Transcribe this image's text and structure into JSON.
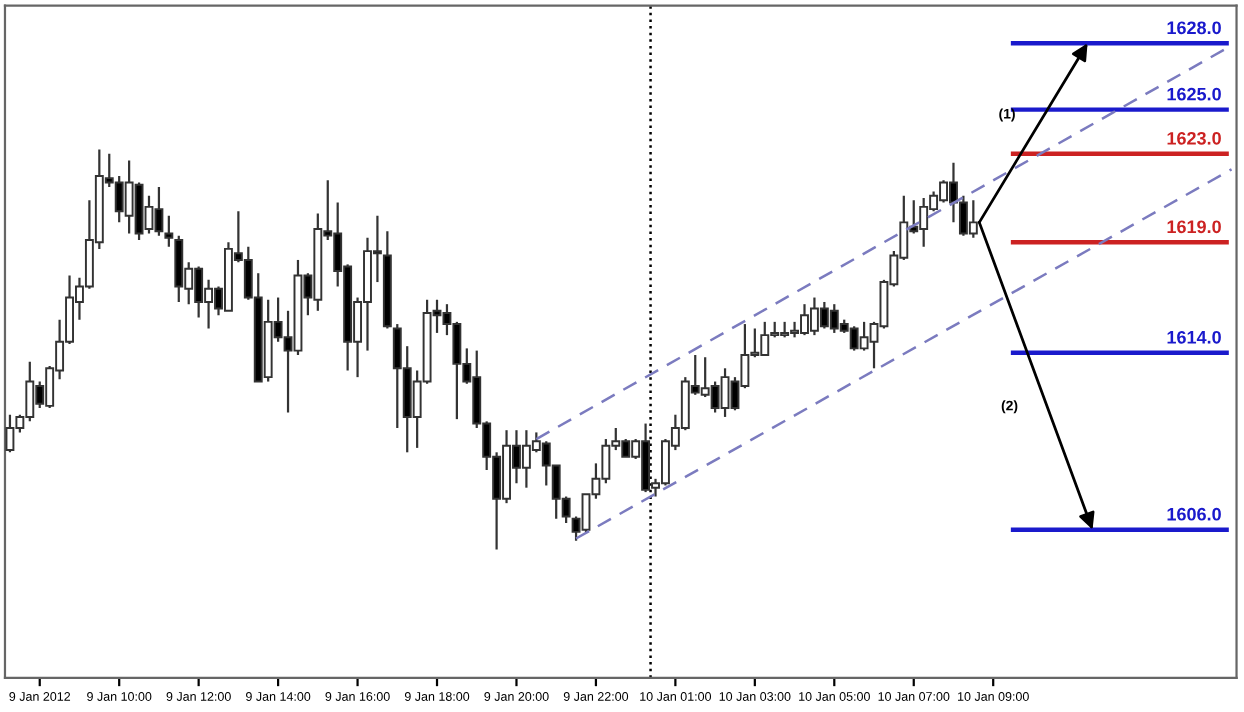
{
  "chart_data": {
    "type": "candlestick",
    "categories": [
      null,
      null,
      null,
      "9 Jan 2012",
      null,
      null,
      null,
      null,
      null,
      null,
      null,
      "9 Jan 10:00",
      null,
      null,
      null,
      null,
      null,
      null,
      null,
      "9 Jan 12:00",
      null,
      null,
      null,
      null,
      null,
      null,
      null,
      "9 Jan 14:00",
      null,
      null,
      null,
      null,
      null,
      null,
      null,
      "9 Jan 16:00",
      null,
      null,
      null,
      null,
      null,
      null,
      null,
      "9 Jan 18:00",
      null,
      null,
      null,
      null,
      null,
      null,
      null,
      "9 Jan 20:00",
      null,
      null,
      null,
      null,
      null,
      null,
      null,
      "9 Jan 22:00",
      null,
      null,
      null,
      null,
      null,
      null,
      null,
      "10 Jan 01:00",
      null,
      null,
      null,
      null,
      null,
      null,
      null,
      "10 Jan 03:00",
      null,
      null,
      null,
      null,
      null,
      null,
      null,
      "10 Jan 05:00",
      null,
      null,
      null,
      null,
      null,
      null,
      null,
      "10 Jan 07:00",
      null,
      null,
      null,
      null,
      null,
      null,
      null,
      "10 Jan 09:00",
      null,
      null,
      null,
      null,
      null,
      null,
      null,
      null,
      null,
      null,
      null,
      null,
      null,
      null,
      null,
      null,
      null,
      null,
      null,
      null,
      null,
      null,
      null,
      null
    ],
    "ohlc": [
      [
        1609.6,
        1611.2,
        1609.5,
        1610.6
      ],
      [
        1610.6,
        1611.2,
        1610.4,
        1611.1
      ],
      [
        1611.1,
        1613.6,
        1610.9,
        1612.7
      ],
      [
        1612.5,
        1612.7,
        1611.5,
        1611.7
      ],
      [
        1611.6,
        1613.4,
        1611.5,
        1613.3
      ],
      [
        1613.2,
        1615.5,
        1612.8,
        1614.5
      ],
      [
        1614.5,
        1617.5,
        1614.4,
        1616.5
      ],
      [
        1616.3,
        1617.4,
        1615.5,
        1617.0
      ],
      [
        1617.0,
        1620.9,
        1616.9,
        1619.1
      ],
      [
        1619.0,
        1623.2,
        1618.7,
        1622.0
      ],
      [
        1621.9,
        1623.0,
        1621.5,
        1621.7
      ],
      [
        1621.7,
        1622.0,
        1619.9,
        1620.4
      ],
      [
        1620.2,
        1622.7,
        1619.4,
        1621.7
      ],
      [
        1621.6,
        1621.7,
        1619.1,
        1619.4
      ],
      [
        1619.6,
        1621.1,
        1619.4,
        1620.6
      ],
      [
        1620.5,
        1621.5,
        1619.3,
        1619.5
      ],
      [
        1619.4,
        1620.2,
        1618.8,
        1619.2
      ],
      [
        1619.1,
        1619.3,
        1616.3,
        1617.0
      ],
      [
        1616.9,
        1618.1,
        1616.2,
        1617.8
      ],
      [
        1617.8,
        1617.9,
        1615.6,
        1616.3
      ],
      [
        1616.3,
        1617.3,
        1615.1,
        1616.9
      ],
      [
        1616.9,
        1617.0,
        1615.7,
        1616.0
      ],
      [
        1615.9,
        1619.0,
        1615.9,
        1618.7
      ],
      [
        1618.5,
        1620.4,
        1618.1,
        1618.2
      ],
      [
        1618.2,
        1618.8,
        1616.4,
        1616.5
      ],
      [
        1616.5,
        1617.6,
        1612.7,
        1612.7
      ],
      [
        1612.9,
        1616.4,
        1612.7,
        1615.4
      ],
      [
        1615.4,
        1616.5,
        1614.5,
        1614.7
      ],
      [
        1614.7,
        1615.9,
        1611.3,
        1614.1
      ],
      [
        1614.1,
        1618.2,
        1613.9,
        1617.5
      ],
      [
        1617.5,
        1617.6,
        1615.7,
        1616.5
      ],
      [
        1616.4,
        1620.3,
        1615.9,
        1619.6
      ],
      [
        1619.5,
        1621.8,
        1619.1,
        1619.3
      ],
      [
        1619.4,
        1620.8,
        1617.0,
        1617.7
      ],
      [
        1617.9,
        1618.0,
        1613.2,
        1614.5
      ],
      [
        1614.5,
        1616.5,
        1612.9,
        1616.3
      ],
      [
        1616.3,
        1619.2,
        1614.1,
        1618.6
      ],
      [
        1618.6,
        1620.2,
        1617.2,
        1618.5
      ],
      [
        1618.4,
        1619.5,
        1615.1,
        1615.2
      ],
      [
        1615.1,
        1615.3,
        1610.6,
        1613.3
      ],
      [
        1613.3,
        1614.3,
        1609.5,
        1611.1
      ],
      [
        1611.1,
        1613.2,
        1609.7,
        1612.7
      ],
      [
        1612.7,
        1616.4,
        1612.6,
        1615.8
      ],
      [
        1615.9,
        1616.4,
        1614.9,
        1615.7
      ],
      [
        1615.8,
        1616.2,
        1614.8,
        1615.3
      ],
      [
        1615.3,
        1615.4,
        1611.0,
        1613.5
      ],
      [
        1613.5,
        1614.2,
        1612.6,
        1612.7
      ],
      [
        1612.9,
        1614.1,
        1610.6,
        1610.8
      ],
      [
        1610.8,
        1610.9,
        1608.7,
        1609.3
      ],
      [
        1609.3,
        1609.5,
        1605.1,
        1607.4
      ],
      [
        1607.4,
        1610.5,
        1607.2,
        1609.8
      ],
      [
        1609.8,
        1610.5,
        1608.1,
        1608.8
      ],
      [
        1608.8,
        1610.5,
        1607.9,
        1609.8
      ],
      [
        1609.6,
        1610.4,
        1609.5,
        1610.0
      ],
      [
        1609.9,
        1610.0,
        1608.0,
        1608.9
      ],
      [
        1608.9,
        1608.9,
        1606.5,
        1607.4
      ],
      [
        1607.4,
        1607.5,
        1606.3,
        1606.6
      ],
      [
        1606.5,
        1606.6,
        1605.5,
        1605.9
      ],
      [
        1606.0,
        1607.6,
        1605.9,
        1607.6
      ],
      [
        1607.6,
        1609.0,
        1607.4,
        1608.3
      ],
      [
        1608.3,
        1610.1,
        1608.1,
        1609.8
      ],
      [
        1609.8,
        1610.6,
        1609.6,
        1610.0
      ],
      [
        1610.0,
        1610.1,
        1609.3,
        1609.3
      ],
      [
        1609.3,
        1610.1,
        1609.2,
        1610.0
      ],
      [
        1610.0,
        1610.8,
        1607.7,
        1607.8
      ],
      [
        1607.9,
        1608.3,
        1607.5,
        1608.1
      ],
      [
        1608.1,
        1610.1,
        1608.0,
        1610.0
      ],
      [
        1609.8,
        1611.2,
        1609.6,
        1610.6
      ],
      [
        1610.6,
        1612.9,
        1610.5,
        1612.7
      ],
      [
        1612.5,
        1613.9,
        1612.1,
        1612.2
      ],
      [
        1612.1,
        1613.8,
        1612.0,
        1612.4
      ],
      [
        1612.5,
        1612.7,
        1611.3,
        1611.5
      ],
      [
        1611.5,
        1613.3,
        1611.1,
        1612.9
      ],
      [
        1612.7,
        1612.9,
        1611.4,
        1611.5
      ],
      [
        1612.5,
        1615.3,
        1612.4,
        1613.9
      ],
      [
        1613.9,
        1615.1,
        1613.8,
        1614.0
      ],
      [
        1613.9,
        1615.4,
        1613.9,
        1614.8
      ],
      [
        1614.8,
        1615.4,
        1614.7,
        1614.9
      ],
      [
        1614.8,
        1615.4,
        1614.7,
        1614.9
      ],
      [
        1614.9,
        1615.4,
        1614.7,
        1615.0
      ],
      [
        1614.9,
        1616.2,
        1614.8,
        1615.7
      ],
      [
        1615.0,
        1616.5,
        1614.8,
        1616.0
      ],
      [
        1616.0,
        1616.3,
        1615.1,
        1615.2
      ],
      [
        1615.9,
        1616.2,
        1614.9,
        1615.1
      ],
      [
        1615.3,
        1615.5,
        1614.9,
        1615.0
      ],
      [
        1615.1,
        1615.2,
        1614.1,
        1614.2
      ],
      [
        1614.2,
        1615.4,
        1614.1,
        1614.7
      ],
      [
        1614.5,
        1615.4,
        1613.3,
        1615.3
      ],
      [
        1615.2,
        1617.3,
        1615.1,
        1617.2
      ],
      [
        1617.1,
        1618.6,
        1617.0,
        1618.4
      ],
      [
        1618.3,
        1621.1,
        1618.2,
        1619.9
      ],
      [
        1619.7,
        1620.9,
        1619.4,
        1619.5
      ],
      [
        1619.6,
        1621.0,
        1618.8,
        1620.6
      ],
      [
        1620.5,
        1621.3,
        1620.4,
        1621.1
      ],
      [
        1620.9,
        1621.8,
        1620.8,
        1621.7
      ],
      [
        1621.7,
        1622.6,
        1619.9,
        1620.8
      ],
      [
        1620.8,
        1621.1,
        1619.3,
        1619.4
      ],
      [
        1619.4,
        1620.9,
        1619.2,
        1619.9
      ],
      null,
      null,
      null,
      null,
      null,
      null,
      null,
      null,
      null,
      null,
      null,
      null,
      null,
      null,
      null,
      null,
      null,
      null,
      null,
      null,
      null,
      null,
      null,
      null,
      null,
      null
    ],
    "series": [
      {
        "type": "line",
        "color": "#7b7bbf",
        "line_style": "dashed",
        "values": [
          null,
          null,
          null,
          null,
          null,
          null,
          null,
          null,
          null,
          null,
          null,
          null,
          null,
          null,
          null,
          null,
          null,
          null,
          null,
          null,
          null,
          null,
          null,
          null,
          null,
          null,
          null,
          null,
          null,
          null,
          null,
          null,
          null,
          null,
          null,
          null,
          null,
          null,
          null,
          null,
          null,
          null,
          null,
          null,
          null,
          null,
          null,
          null,
          null,
          null,
          null,
          null,
          null,
          1610.1,
          null,
          null,
          null,
          null,
          null,
          null,
          null,
          null,
          null,
          null,
          null,
          null,
          null,
          null,
          null,
          null,
          null,
          null,
          null,
          null,
          null,
          null,
          null,
          null,
          null,
          null,
          null,
          null,
          null,
          null,
          null,
          null,
          null,
          null,
          null,
          null,
          null,
          null,
          null,
          null,
          null,
          null,
          null,
          null,
          null,
          null,
          null,
          null,
          null,
          null,
          null,
          null,
          null,
          null,
          null,
          null,
          null,
          null,
          null,
          null,
          null,
          null,
          null,
          null,
          null,
          null,
          null,
          null,
          null,
          1627.9
        ]
      },
      {
        "type": "line",
        "color": "#7b7bbf",
        "line_style": "dashed",
        "values": [
          null,
          null,
          null,
          null,
          null,
          null,
          null,
          null,
          null,
          null,
          null,
          null,
          null,
          null,
          null,
          null,
          null,
          null,
          null,
          null,
          null,
          null,
          null,
          null,
          null,
          null,
          null,
          null,
          null,
          null,
          null,
          null,
          null,
          null,
          null,
          null,
          null,
          null,
          null,
          null,
          null,
          null,
          null,
          null,
          null,
          null,
          null,
          null,
          null,
          null,
          null,
          null,
          null,
          null,
          null,
          null,
          null,
          1605.6,
          null,
          null,
          null,
          null,
          null,
          null,
          null,
          null,
          null,
          null,
          null,
          null,
          null,
          null,
          null,
          null,
          null,
          null,
          null,
          null,
          null,
          null,
          null,
          null,
          null,
          null,
          null,
          null,
          null,
          null,
          null,
          null,
          null,
          null,
          null,
          null,
          null,
          null,
          null,
          null,
          null,
          null,
          null,
          null,
          null,
          null,
          null,
          null,
          null,
          null,
          null,
          null,
          null,
          null,
          null,
          null,
          null,
          null,
          null,
          null,
          null,
          null,
          null,
          null,
          null,
          1622.3
        ]
      }
    ],
    "ref_lines": [
      {
        "axis": "y",
        "value": 1628,
        "label": "1628.0",
        "color": "#1a1acc"
      },
      {
        "axis": "y",
        "value": 1625,
        "label": "1625.0",
        "color": "#1a1acc"
      },
      {
        "axis": "y",
        "value": 1623,
        "label": "1623.0",
        "color": "#cc2222"
      },
      {
        "axis": "y",
        "value": 1619,
        "label": "1619.0",
        "color": "#cc2222"
      },
      {
        "axis": "y",
        "value": 1614,
        "label": "1614.0",
        "color": "#1a1acc"
      },
      {
        "axis": "y",
        "value": 1606,
        "label": "1606.0",
        "color": "#1a1acc"
      }
    ],
    "annotations": [
      "(1)",
      "(2)"
    ],
    "ylim": [
      1599.3,
      1629.7
    ],
    "tick_labels": "x",
    "grid": false,
    "legend": false
  }
}
